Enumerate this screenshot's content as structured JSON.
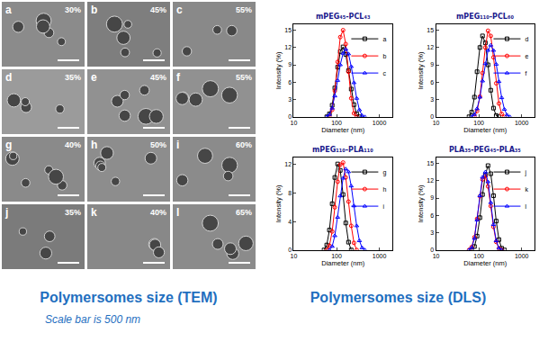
{
  "figure": {
    "tem": {
      "title": "Polymersomes size (TEM)",
      "note": "Scale bar is 500 nm",
      "panels": [
        {
          "letter": "a",
          "label": "30%"
        },
        {
          "letter": "b",
          "label": "45%"
        },
        {
          "letter": "c",
          "label": "55%"
        },
        {
          "letter": "d",
          "label": "35%"
        },
        {
          "letter": "e",
          "label": "45%"
        },
        {
          "letter": "f",
          "label": "55%"
        },
        {
          "letter": "g",
          "label": "40%"
        },
        {
          "letter": "h",
          "label": "50%"
        },
        {
          "letter": "i",
          "label": "60%"
        },
        {
          "letter": "j",
          "label": "35%"
        },
        {
          "letter": "k",
          "label": "40%"
        },
        {
          "letter": "l",
          "label": "65%"
        }
      ]
    },
    "dls_title": "Polymersomes size (DLS)"
  },
  "chart_data": [
    {
      "type": "line",
      "title": "mPEG₄₅-PCL₄₃",
      "x_label": "Diameter (nm)",
      "y_label": "Intensity (%)",
      "log": "x",
      "xlim": [
        10,
        2000
      ],
      "xticks": [
        10,
        100,
        1000
      ],
      "ylim": [
        0,
        16
      ],
      "yticks": [
        0,
        3,
        6,
        9,
        12,
        15
      ],
      "grid": false,
      "legend": "top right",
      "series": [
        {
          "name": "a",
          "color": "#000000",
          "marker": "square",
          "line_style": "solid",
          "x": [
            59,
            68,
            79,
            91,
            106,
            122,
            142,
            164,
            190,
            220,
            255,
            295,
            342
          ],
          "values": [
            0,
            0.5,
            2.0,
            5.0,
            8.6,
            11.3,
            12.1,
            10.8,
            8.0,
            4.8,
            2.1,
            0.5,
            0
          ]
        },
        {
          "name": "b",
          "color": "#ff0000",
          "marker": "circle",
          "line_style": "solid",
          "x": [
            68,
            79,
            91,
            106,
            122,
            142,
            164,
            190,
            220,
            255,
            295
          ],
          "values": [
            0,
            1.2,
            4.5,
            9.5,
            13.8,
            15.0,
            12.6,
            7.8,
            3.2,
            0.6,
            0
          ]
        },
        {
          "name": "c",
          "color": "#0000ff",
          "marker": "triangle",
          "line_style": "solid",
          "x": [
            59,
            68,
            79,
            91,
            106,
            122,
            142,
            164,
            190,
            220,
            255,
            295,
            342,
            396,
            459
          ],
          "values": [
            0,
            0.4,
            1.5,
            3.6,
            6.3,
            9.0,
            11.0,
            11.7,
            10.9,
            8.7,
            5.9,
            3.2,
            1.2,
            0.2,
            0
          ]
        }
      ]
    },
    {
      "type": "line",
      "title": "mPEG₁₁₀-PCL₆₀",
      "x_label": "Diameter (nm)",
      "y_label": "Intensity (%)",
      "log": "x",
      "xlim": [
        10,
        2000
      ],
      "xticks": [
        10,
        100,
        1000
      ],
      "ylim": [
        0,
        16
      ],
      "yticks": [
        0,
        3,
        6,
        9,
        12,
        15
      ],
      "grid": false,
      "legend": "top right",
      "series": [
        {
          "name": "d",
          "color": "#000000",
          "marker": "square",
          "line_style": "solid",
          "x": [
            59,
            68,
            79,
            91,
            106,
            122,
            142,
            164,
            190,
            220,
            255,
            295
          ],
          "values": [
            0,
            0.8,
            3.4,
            7.8,
            12.0,
            14.0,
            12.8,
            9.0,
            4.6,
            1.5,
            0.2,
            0
          ]
        },
        {
          "name": "e",
          "color": "#ff0000",
          "marker": "circle",
          "line_style": "solid",
          "x": [
            79,
            91,
            106,
            122,
            142,
            164,
            190,
            220,
            255,
            295,
            342,
            396
          ],
          "values": [
            0,
            1.0,
            3.5,
            7.6,
            12.0,
            14.9,
            14.0,
            10.3,
            5.8,
            2.3,
            0.5,
            0
          ]
        },
        {
          "name": "f",
          "color": "#0000ff",
          "marker": "triangle",
          "line_style": "solid",
          "x": [
            68,
            79,
            91,
            106,
            122,
            142,
            164,
            190,
            220,
            255,
            295,
            342,
            396,
            459,
            531
          ],
          "values": [
            0,
            0.4,
            1.4,
            3.4,
            6.2,
            9.2,
            11.5,
            12.4,
            11.5,
            9.1,
            6.1,
            3.3,
            1.3,
            0.3,
            0
          ]
        }
      ]
    },
    {
      "type": "line",
      "title": "mPEG₁₁₀-PLA₁₁₀",
      "x_label": "Diameter (nm)",
      "y_label": "Intensity (%)",
      "log": "x",
      "xlim": [
        10,
        2000
      ],
      "xticks": [
        10,
        100,
        1000
      ],
      "ylim": [
        0,
        13
      ],
      "yticks": [
        0,
        4,
        8,
        12
      ],
      "grid": false,
      "legend": "top right",
      "series": [
        {
          "name": "g",
          "color": "#000000",
          "marker": "square",
          "line_style": "solid",
          "x": [
            51,
            59,
            68,
            79,
            91,
            106,
            122,
            142,
            164,
            190,
            220
          ],
          "values": [
            0,
            0.7,
            2.8,
            6.5,
            10.2,
            12.1,
            11.2,
            7.8,
            3.8,
            1.1,
            0
          ]
        },
        {
          "name": "h",
          "color": "#ff0000",
          "marker": "circle",
          "line_style": "solid",
          "x": [
            59,
            68,
            79,
            91,
            106,
            122,
            142,
            164,
            190,
            220,
            255,
            295
          ],
          "values": [
            0,
            0.6,
            2.6,
            6.0,
            9.6,
            12.0,
            12.3,
            10.2,
            6.8,
            3.4,
            1.0,
            0
          ]
        },
        {
          "name": "i",
          "color": "#0000ff",
          "marker": "triangle",
          "line_style": "solid",
          "x": [
            68,
            79,
            91,
            106,
            122,
            142,
            164,
            190,
            220,
            255,
            295,
            342,
            396,
            459
          ],
          "values": [
            0,
            0.5,
            2.0,
            4.6,
            7.6,
            10.1,
            11.4,
            11.0,
            9.0,
            6.2,
            3.4,
            1.3,
            0.3,
            0
          ]
        }
      ]
    },
    {
      "type": "line",
      "title": "PLA₃₅-PEG₄₅-PLA₃₅",
      "x_label": "Diameter (nm)",
      "y_label": "Intensity (%)",
      "log": "x",
      "xlim": [
        10,
        2000
      ],
      "xticks": [
        10,
        100,
        1000
      ],
      "ylim": [
        0,
        16
      ],
      "yticks": [
        0,
        3,
        6,
        9,
        12,
        15
      ],
      "grid": false,
      "legend": "top right",
      "series": [
        {
          "name": "j",
          "color": "#000000",
          "marker": "square",
          "line_style": "solid",
          "x": [
            68,
            79,
            91,
            106,
            122,
            142,
            164,
            190,
            220,
            255,
            295,
            342,
            396
          ],
          "values": [
            0,
            0.6,
            2.4,
            5.6,
            9.6,
            13.0,
            14.6,
            13.2,
            9.4,
            5.0,
            1.8,
            0.3,
            0
          ]
        },
        {
          "name": "k",
          "color": "#ff0000",
          "marker": "circle",
          "line_style": "solid",
          "x": [
            59,
            68,
            79,
            91,
            106,
            122,
            142,
            164,
            190,
            220,
            255,
            295,
            342
          ],
          "values": [
            0,
            0.5,
            2.2,
            5.4,
            9.3,
            12.2,
            12.8,
            11.0,
            7.6,
            4.0,
            1.4,
            0.3,
            0
          ]
        },
        {
          "name": "l",
          "color": "#0000ff",
          "marker": "triangle",
          "line_style": "solid",
          "x": [
            59,
            68,
            79,
            91,
            106,
            122,
            142,
            164,
            190,
            220,
            255,
            295,
            342
          ],
          "values": [
            0,
            0.4,
            2.0,
            5.2,
            9.4,
            12.6,
            13.5,
            11.8,
            8.2,
            4.4,
            1.6,
            0.3,
            0
          ]
        }
      ]
    }
  ]
}
